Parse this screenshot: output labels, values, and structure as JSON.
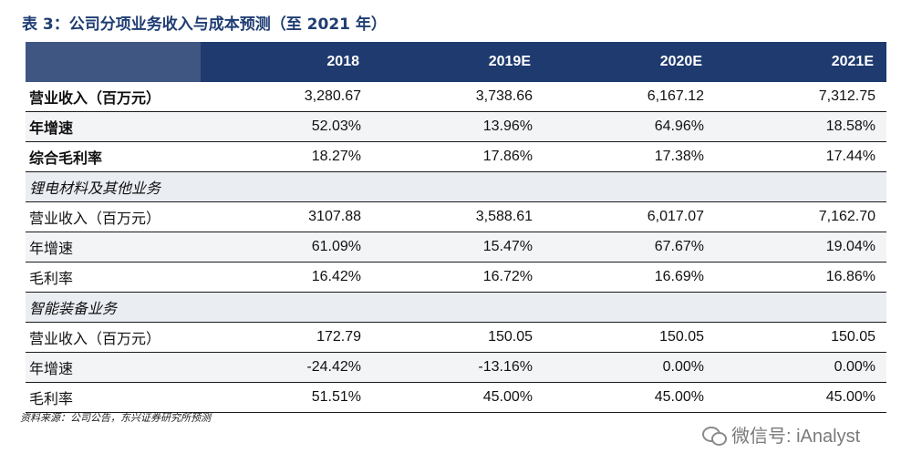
{
  "title": "表 3：公司分项业务收入与成本预测（至 2021 年）",
  "header": {
    "col0": "",
    "years": [
      "2018",
      "2019E",
      "2020E",
      "2021E"
    ]
  },
  "rows": [
    {
      "label": "营业收入（百万元）",
      "values": [
        "3,280.67",
        "3,738.66",
        "6,167.12",
        "7,312.75"
      ]
    },
    {
      "label": "年增速",
      "values": [
        "52.03%",
        "13.96%",
        "64.96%",
        "18.58%"
      ]
    },
    {
      "label": "综合毛利率",
      "values": [
        "18.27%",
        "17.86%",
        "17.38%",
        "17.44%"
      ]
    },
    {
      "label": "锂电材料及其他业务",
      "values": [
        "",
        "",
        "",
        ""
      ]
    },
    {
      "label": "营业收入（百万元）",
      "values": [
        "3107.88",
        "3,588.61",
        "6,017.07",
        "7,162.70"
      ]
    },
    {
      "label": "年增速",
      "values": [
        "61.09%",
        "15.47%",
        "67.67%",
        "19.04%"
      ]
    },
    {
      "label": "毛利率",
      "values": [
        "16.42%",
        "16.72%",
        "16.69%",
        "16.86%"
      ]
    },
    {
      "label": "智能装备业务",
      "values": [
        "",
        "",
        "",
        ""
      ]
    },
    {
      "label": "营业收入（百万元）",
      "values": [
        "172.79",
        "150.05",
        "150.05",
        "150.05"
      ]
    },
    {
      "label": "年增速",
      "values": [
        "-24.42%",
        "-13.16%",
        "0.00%",
        "0.00%"
      ]
    },
    {
      "label": "毛利率",
      "values": [
        "51.51%",
        "45.00%",
        "45.00%",
        "45.00%"
      ]
    }
  ],
  "source": "资料来源：公司公告，东兴证券研究所预测",
  "watermark": {
    "text": "微信号: iAnalyst",
    "icon": "wechat-icon"
  }
}
